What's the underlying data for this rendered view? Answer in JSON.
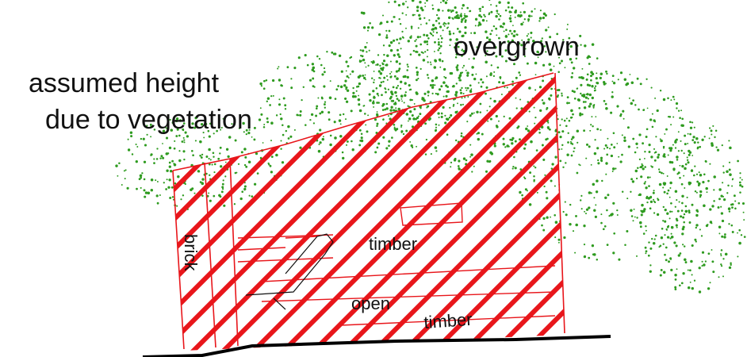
{
  "diagram": {
    "labels": {
      "overgrown": "overgrown",
      "assumed_line1": "assumed height",
      "assumed_line2": "due to vegetation",
      "brick": "brick",
      "timber_upper": "timber",
      "open": "open",
      "timber_lower": "timber"
    },
    "colors": {
      "hatch": "#e8161b",
      "vegetation": "#2e9b1f",
      "ground": "#000000",
      "outline": "#111111",
      "background": "#ffffff"
    }
  }
}
